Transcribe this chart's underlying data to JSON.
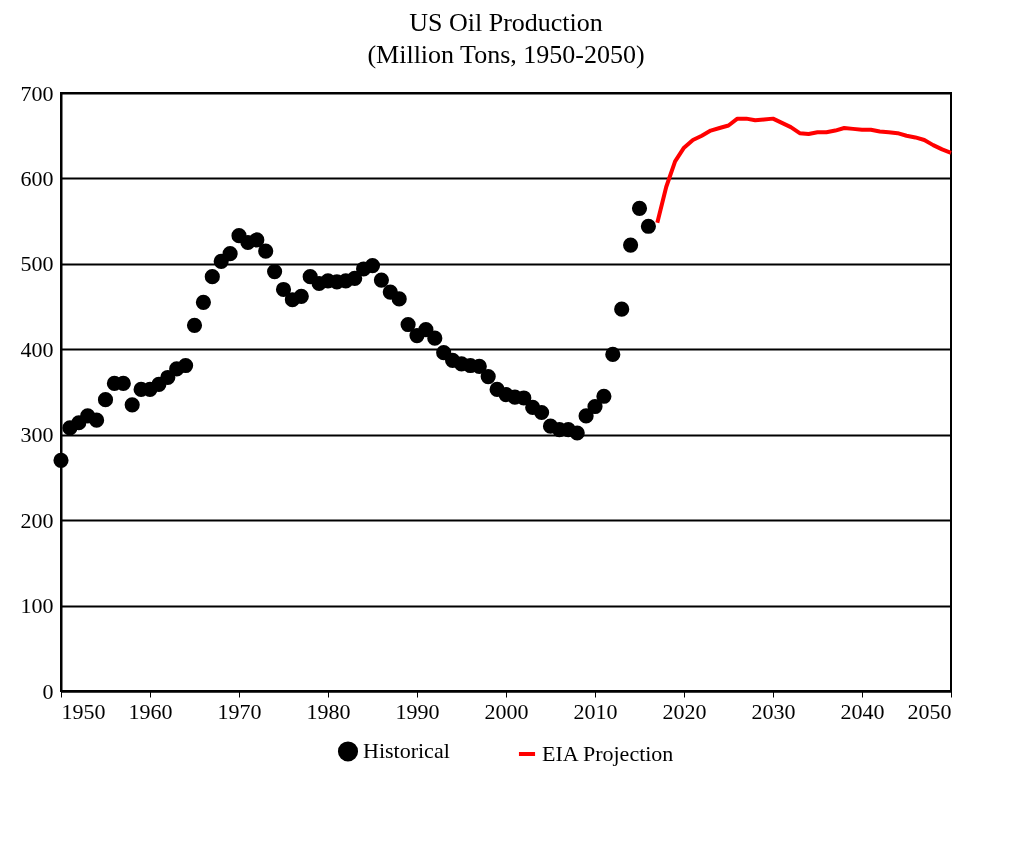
{
  "chart_data": {
    "type": "scatter",
    "title": [
      "US Oil Production",
      "(Million Tons, 1950-2050)"
    ],
    "xlim": [
      1950,
      2050
    ],
    "xticks": [
      1950,
      1960,
      1970,
      1980,
      1990,
      2000,
      2010,
      2020,
      2030,
      2040,
      2050
    ],
    "ylim": [
      0,
      700
    ],
    "yticks": [
      0,
      100,
      200,
      300,
      400,
      500,
      600,
      700
    ],
    "grid": "y",
    "legend": "bottom",
    "series": [
      {
        "name": "Historical",
        "color": "#000000",
        "marker": "circle",
        "x": [
          1950,
          1951,
          1952,
          1953,
          1954,
          1955,
          1956,
          1957,
          1958,
          1959,
          1960,
          1961,
          1962,
          1963,
          1964,
          1965,
          1966,
          1967,
          1968,
          1969,
          1970,
          1971,
          1972,
          1973,
          1974,
          1975,
          1976,
          1977,
          1978,
          1979,
          1980,
          1981,
          1982,
          1983,
          1984,
          1985,
          1986,
          1987,
          1988,
          1989,
          1990,
          1991,
          1992,
          1993,
          1994,
          1995,
          1996,
          1997,
          1998,
          1999,
          2000,
          2001,
          2002,
          2003,
          2004,
          2005,
          2006,
          2007,
          2008,
          2009,
          2010,
          2011,
          2012,
          2013,
          2014,
          2015,
          2016
        ],
        "values": [
          270,
          308,
          314,
          322,
          317,
          341,
          360,
          360,
          335,
          353,
          353,
          359,
          367,
          377,
          381,
          428,
          455,
          485,
          503,
          512,
          533,
          525,
          528,
          515,
          491,
          470,
          458,
          462,
          485,
          477,
          480,
          479,
          480,
          483,
          494,
          498,
          481,
          467,
          459,
          429,
          416,
          423,
          413,
          396,
          387,
          383,
          381,
          380,
          368,
          353,
          347,
          344,
          343,
          332,
          326,
          310,
          306,
          306,
          302,
          322,
          333,
          345,
          394,
          447,
          522,
          565,
          544
        ]
      },
      {
        "name": "EIA Projection",
        "color": "#ff0000",
        "type": "line",
        "marker": "none",
        "x": [
          2017,
          2018,
          2019,
          2020,
          2021,
          2022,
          2023,
          2024,
          2025,
          2026,
          2027,
          2028,
          2029,
          2030,
          2031,
          2032,
          2033,
          2034,
          2035,
          2036,
          2037,
          2038,
          2039,
          2040,
          2041,
          2042,
          2043,
          2044,
          2045,
          2046,
          2047,
          2048,
          2049,
          2050
        ],
        "values": [
          548,
          590,
          620,
          636,
          645,
          650,
          656,
          659,
          662,
          670,
          670,
          668,
          669,
          670,
          665,
          660,
          653,
          652,
          654,
          654,
          656,
          659,
          658,
          657,
          657,
          655,
          654,
          653,
          650,
          648,
          645,
          639,
          634,
          630
        ]
      }
    ]
  }
}
